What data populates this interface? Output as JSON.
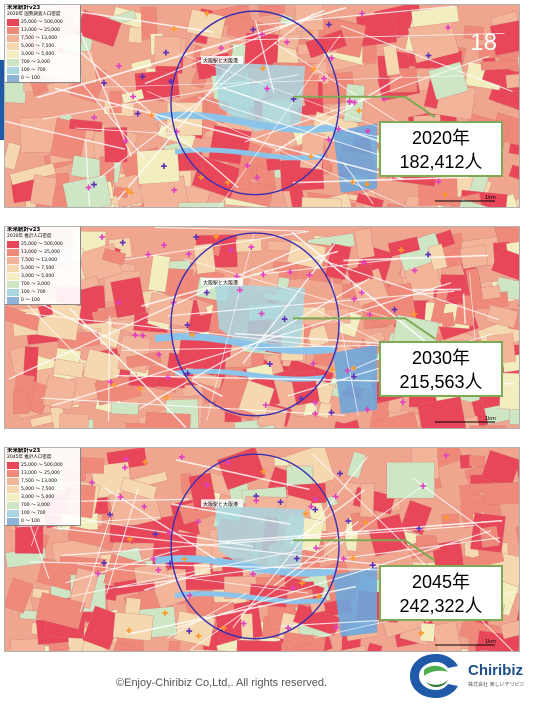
{
  "app": {
    "slide_number": "18",
    "copyright": "©Enjoy-Chiribiz  Co,Ltd,.  All rights reserved.",
    "logo_name": "Chiribiz",
    "logo_sub": "株式会社 楽しいチリビジ"
  },
  "legend": {
    "title": "未来統計v23",
    "ranges": [
      "25,000 〜 500,000",
      "13,000 〜 25,000",
      "7,500 〜 13,000",
      "5,000 〜 7,500",
      "3,000 〜 5,000",
      "700 〜 3,000",
      "100 〜 700",
      "0 〜 100"
    ],
    "colors": [
      "#e8475a",
      "#ef8a7a",
      "#f3b59a",
      "#f5d7b0",
      "#f3eec0",
      "#cfe6c4",
      "#a9d6e0",
      "#8db4d8"
    ]
  },
  "maps": [
    {
      "subtitle": "2020年 国勢調査人口密度",
      "year": "2020年",
      "population": "182,412人",
      "station": "大阪駅と大阪港"
    },
    {
      "subtitle": "2030年 推計人口密度",
      "year": "2030年",
      "population": "215,563人",
      "station": "大阪駅と大阪港"
    },
    {
      "subtitle": "2045年 推計人口密度",
      "year": "2045年",
      "population": "242,322人",
      "station": "大阪駅と大阪港"
    }
  ],
  "scale_label": "1km",
  "colors": {
    "circle": "#3a2fb0",
    "callout_border": "#7eaa55",
    "river": "#8cc3e8",
    "water": "#6ea6dc"
  }
}
